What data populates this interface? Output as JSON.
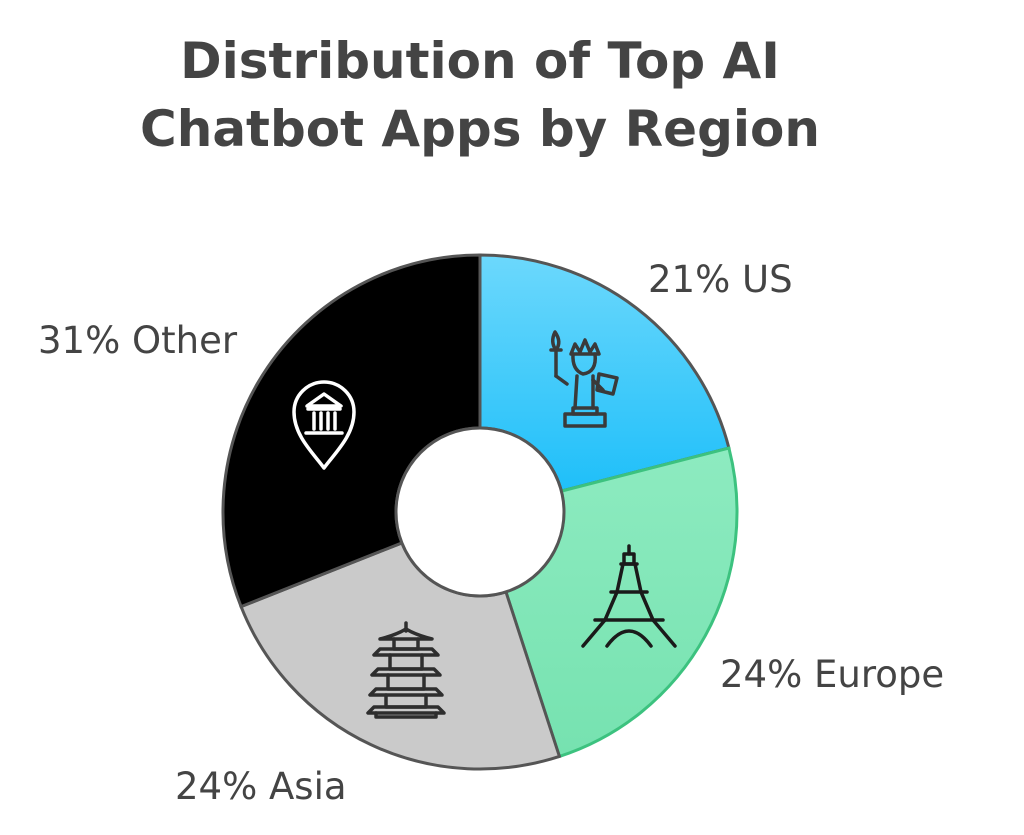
{
  "chart_data": {
    "type": "pie",
    "style": "donut",
    "title_lines": [
      "Distribution of Top AI",
      "Chatbot Apps by Region"
    ],
    "slices": [
      {
        "label": "21% US",
        "category": "US",
        "value": 21,
        "color_top": "#6CD8FC",
        "color_bottom": "#1FBFF9",
        "stroke": "#555555",
        "icon": "statue-of-liberty-icon"
      },
      {
        "label": "24% Europe",
        "category": "Europe",
        "value": 24,
        "color_top": "#8DEBC0",
        "color_bottom": "#76E2B0",
        "stroke": "#3CC27F",
        "icon": "eiffel-tower-icon"
      },
      {
        "label": "24% Asia",
        "category": "Asia",
        "value": 24,
        "color_top": "#CACACA",
        "color_bottom": "#CACACA",
        "stroke": "#555555",
        "icon": "pagoda-icon"
      },
      {
        "label": "31% Other",
        "category": "Other",
        "value": 31,
        "color_top": "#000000",
        "color_bottom": "#000000",
        "stroke": "#555555",
        "icon": "landmark-pin-icon"
      }
    ]
  }
}
